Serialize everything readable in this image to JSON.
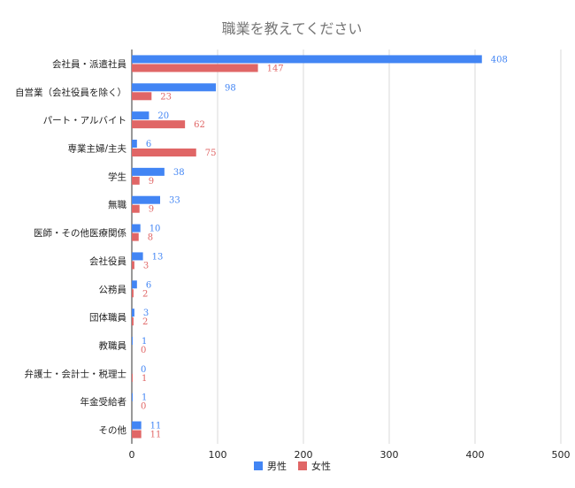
{
  "chart_data": {
    "type": "bar",
    "orientation": "horizontal",
    "title": "職業を教えてください",
    "categories": [
      "会社員・派遣社員",
      "自営業（会社役員を除く）",
      "パート・アルバイト",
      "専業主婦/主夫",
      "学生",
      "無職",
      "医師・その他医療関係",
      "会社役員",
      "公務員",
      "団体職員",
      "教職員",
      "弁護士・会計士・税理士",
      "年金受給者",
      "その他"
    ],
    "series": [
      {
        "name": "男性",
        "color": "#4285f4",
        "values": [
          408,
          98,
          20,
          6,
          38,
          33,
          10,
          13,
          6,
          3,
          1,
          0,
          1,
          11
        ]
      },
      {
        "name": "女性",
        "color": "#e06666",
        "values": [
          147,
          23,
          62,
          75,
          9,
          9,
          8,
          3,
          2,
          2,
          0,
          1,
          0,
          11
        ]
      }
    ],
    "xlim": [
      0,
      500
    ],
    "xticks": [
      "0",
      "100",
      "200",
      "300",
      "400",
      "500"
    ],
    "grid": true,
    "legend_position": "bottom"
  }
}
